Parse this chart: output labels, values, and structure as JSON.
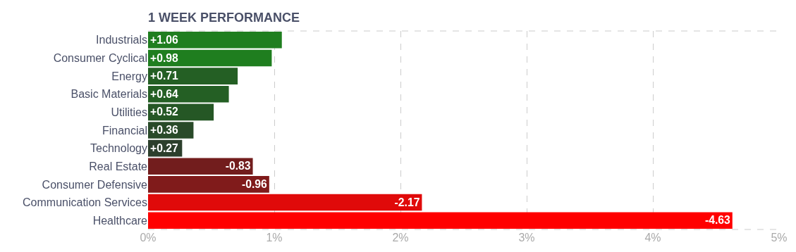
{
  "chart_data": {
    "type": "bar",
    "orientation": "horizontal",
    "title": "1 WEEK PERFORMANCE",
    "categories": [
      "Industrials",
      "Consumer Cyclical",
      "Energy",
      "Basic Materials",
      "Utilities",
      "Financial",
      "Technology",
      "Real Estate",
      "Consumer Defensive",
      "Communication Services",
      "Healthcare"
    ],
    "values": [
      1.06,
      0.98,
      0.71,
      0.64,
      0.52,
      0.36,
      0.27,
      -0.83,
      -0.96,
      -2.17,
      -4.63
    ],
    "base": [
      0,
      0,
      0,
      0,
      0,
      0,
      0,
      0.83,
      0.96,
      2.17,
      4.63
    ],
    "value_labels": [
      "+1.06",
      "+0.98",
      "+0.71",
      "+0.64",
      "+0.52",
      "+0.36",
      "+0.27",
      "-0.83",
      "-0.96",
      "-2.17",
      "-4.63"
    ],
    "colors": [
      "#1f7e1f",
      "#1f7e1f",
      "#245f24",
      "#245f24",
      "#255725",
      "#294a29",
      "#2c3f2c",
      "#721d1d",
      "#801b1b",
      "#e00a0a",
      "#ff0000"
    ],
    "xlim": [
      0,
      5
    ],
    "xticks": [
      {
        "value": 0,
        "label": "0%"
      },
      {
        "value": 1,
        "label": "1%"
      },
      {
        "value": 2,
        "label": "2%"
      },
      {
        "value": 3,
        "label": "3%"
      },
      {
        "value": 4,
        "label": "4%"
      },
      {
        "value": 5,
        "label": "5%"
      }
    ],
    "grid": "x",
    "legend": false
  }
}
